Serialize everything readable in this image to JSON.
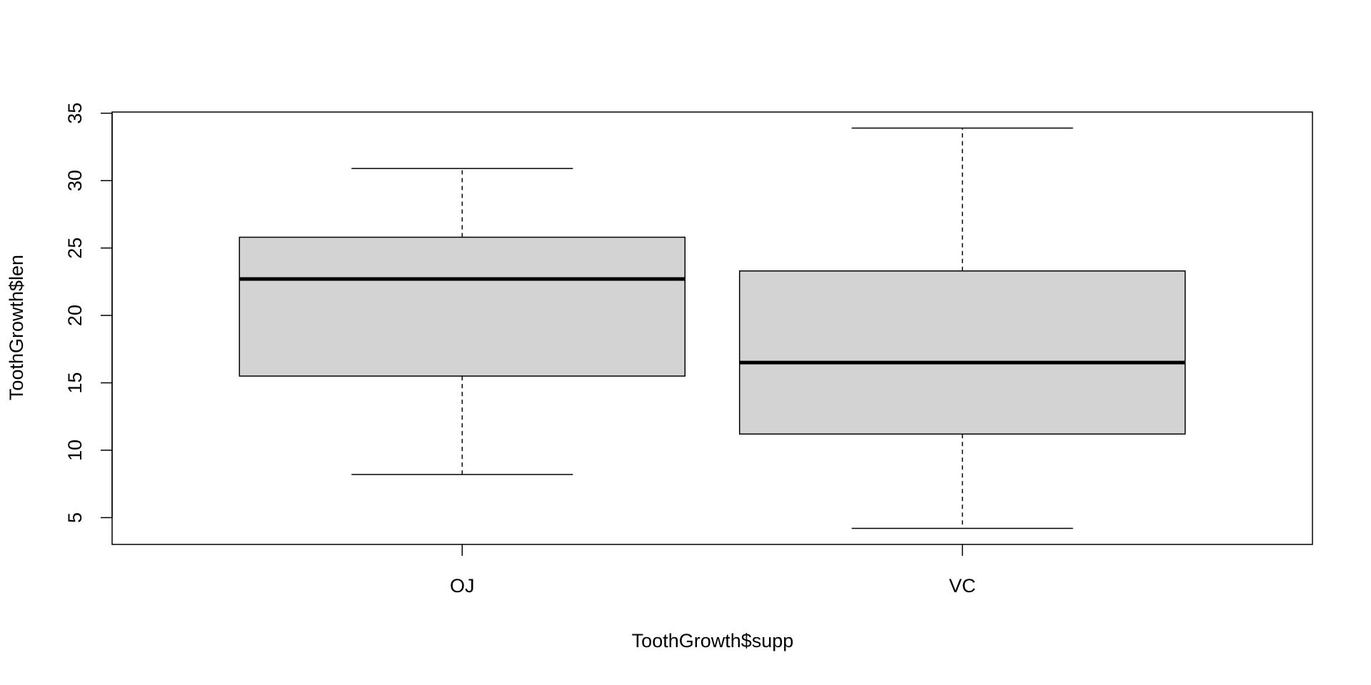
{
  "chart_data": {
    "type": "box",
    "categories": [
      "OJ",
      "VC"
    ],
    "values": [
      {
        "min": 8.2,
        "q1": 15.5,
        "median": 22.7,
        "q3": 25.8,
        "max": 30.9
      },
      {
        "min": 4.2,
        "q1": 11.2,
        "median": 16.5,
        "q3": 23.3,
        "max": 33.9
      }
    ],
    "color": "#d3d3d3",
    "xlabel": "ToothGrowth$supp",
    "ylabel": "ToothGrowth$len",
    "ylim": [
      3.012,
      35.088
    ],
    "yticks": [
      5,
      10,
      15,
      20,
      25,
      30,
      35
    ]
  }
}
